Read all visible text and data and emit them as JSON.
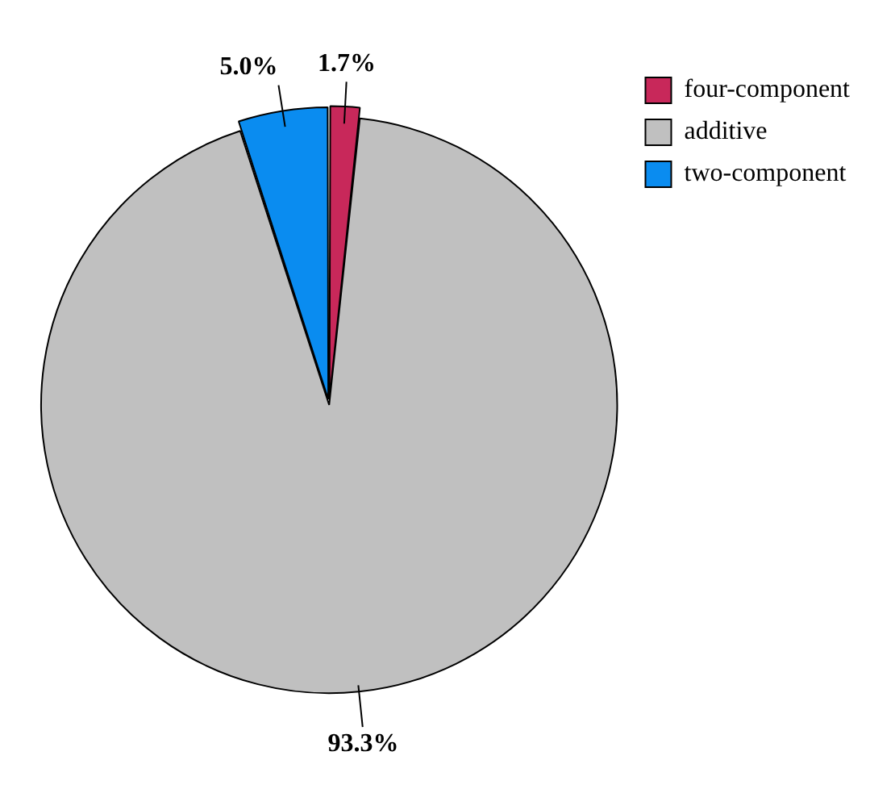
{
  "chart_data": {
    "type": "pie",
    "categories": [
      "four-component",
      "additive",
      "two-component"
    ],
    "values": [
      1.7,
      93.3,
      5.0
    ],
    "colors": [
      "#c8285a",
      "#c0c0c0",
      "#0a8cf0"
    ],
    "value_labels": [
      "1.7%",
      "93.3%",
      "5.0%"
    ],
    "legend": "top right"
  }
}
